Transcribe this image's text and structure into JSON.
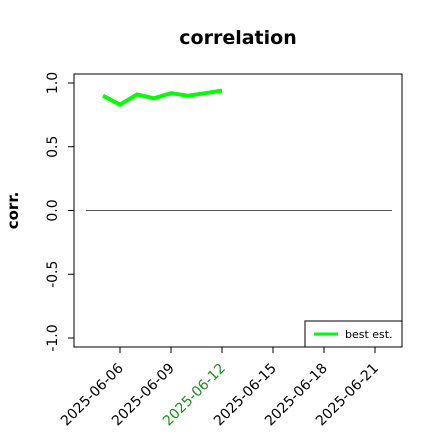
{
  "chart_data": {
    "type": "line",
    "title": "correlation",
    "xlabel": "",
    "ylabel": "corr.",
    "x_ticks": [
      "2025-06-06",
      "2025-06-09",
      "2025-06-12",
      "2025-06-15",
      "2025-06-18",
      "2025-06-21"
    ],
    "x_tick_colors": [
      "#000000",
      "#000000",
      "#228b22",
      "#000000",
      "#000000",
      "#000000"
    ],
    "y_ticks": [
      "-1.0",
      "-0.5",
      "0.0",
      "0.5",
      "1.0"
    ],
    "ylim": [
      -1.0,
      1.0
    ],
    "xlim": [
      "2025-06-04",
      "2025-06-22"
    ],
    "reference_line": 0.0,
    "series": [
      {
        "name": "best est.",
        "color": "#00ff00",
        "x": [
          "2025-06-05",
          "2025-06-06",
          "2025-06-07",
          "2025-06-08",
          "2025-06-09",
          "2025-06-10",
          "2025-06-11",
          "2025-06-12"
        ],
        "values": [
          0.9,
          0.83,
          0.91,
          0.88,
          0.92,
          0.9,
          0.92,
          0.94
        ]
      }
    ],
    "legend": "bottom-right",
    "grid": false
  }
}
